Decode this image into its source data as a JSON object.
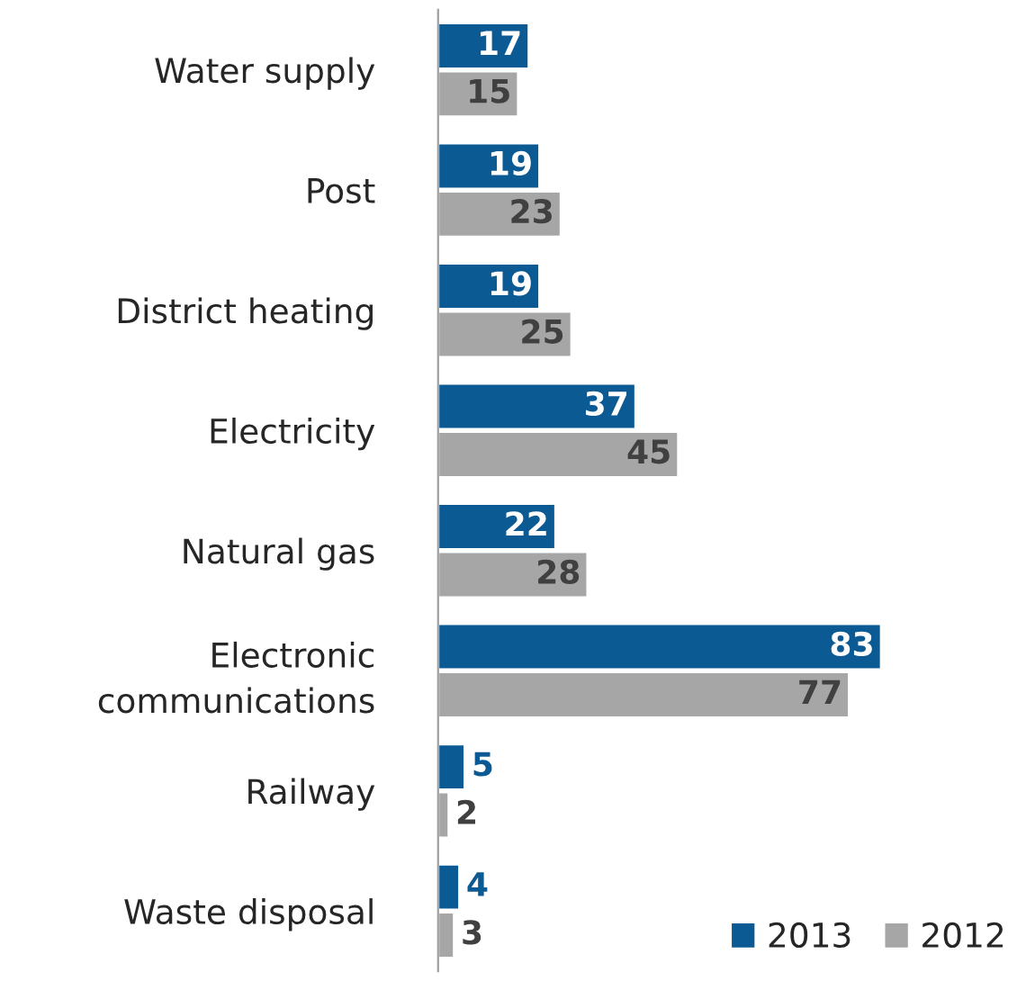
{
  "chart_data": {
    "type": "bar",
    "orientation": "horizontal",
    "data_labels": true,
    "legend": "bottom right",
    "grid": false,
    "categories": [
      "Water supply",
      "Post",
      "District heating",
      "Electricity",
      "Natural gas",
      "Electronic\ncommunications",
      "Railway",
      "Waste disposal"
    ],
    "series": [
      {
        "name": "2013",
        "color": "#0b5a93",
        "values": [
          17,
          19,
          19,
          37,
          22,
          83,
          5,
          4
        ]
      },
      {
        "name": "2012",
        "color": "#a6a6a6",
        "values": [
          15,
          23,
          25,
          45,
          28,
          77,
          2,
          3
        ]
      }
    ]
  }
}
